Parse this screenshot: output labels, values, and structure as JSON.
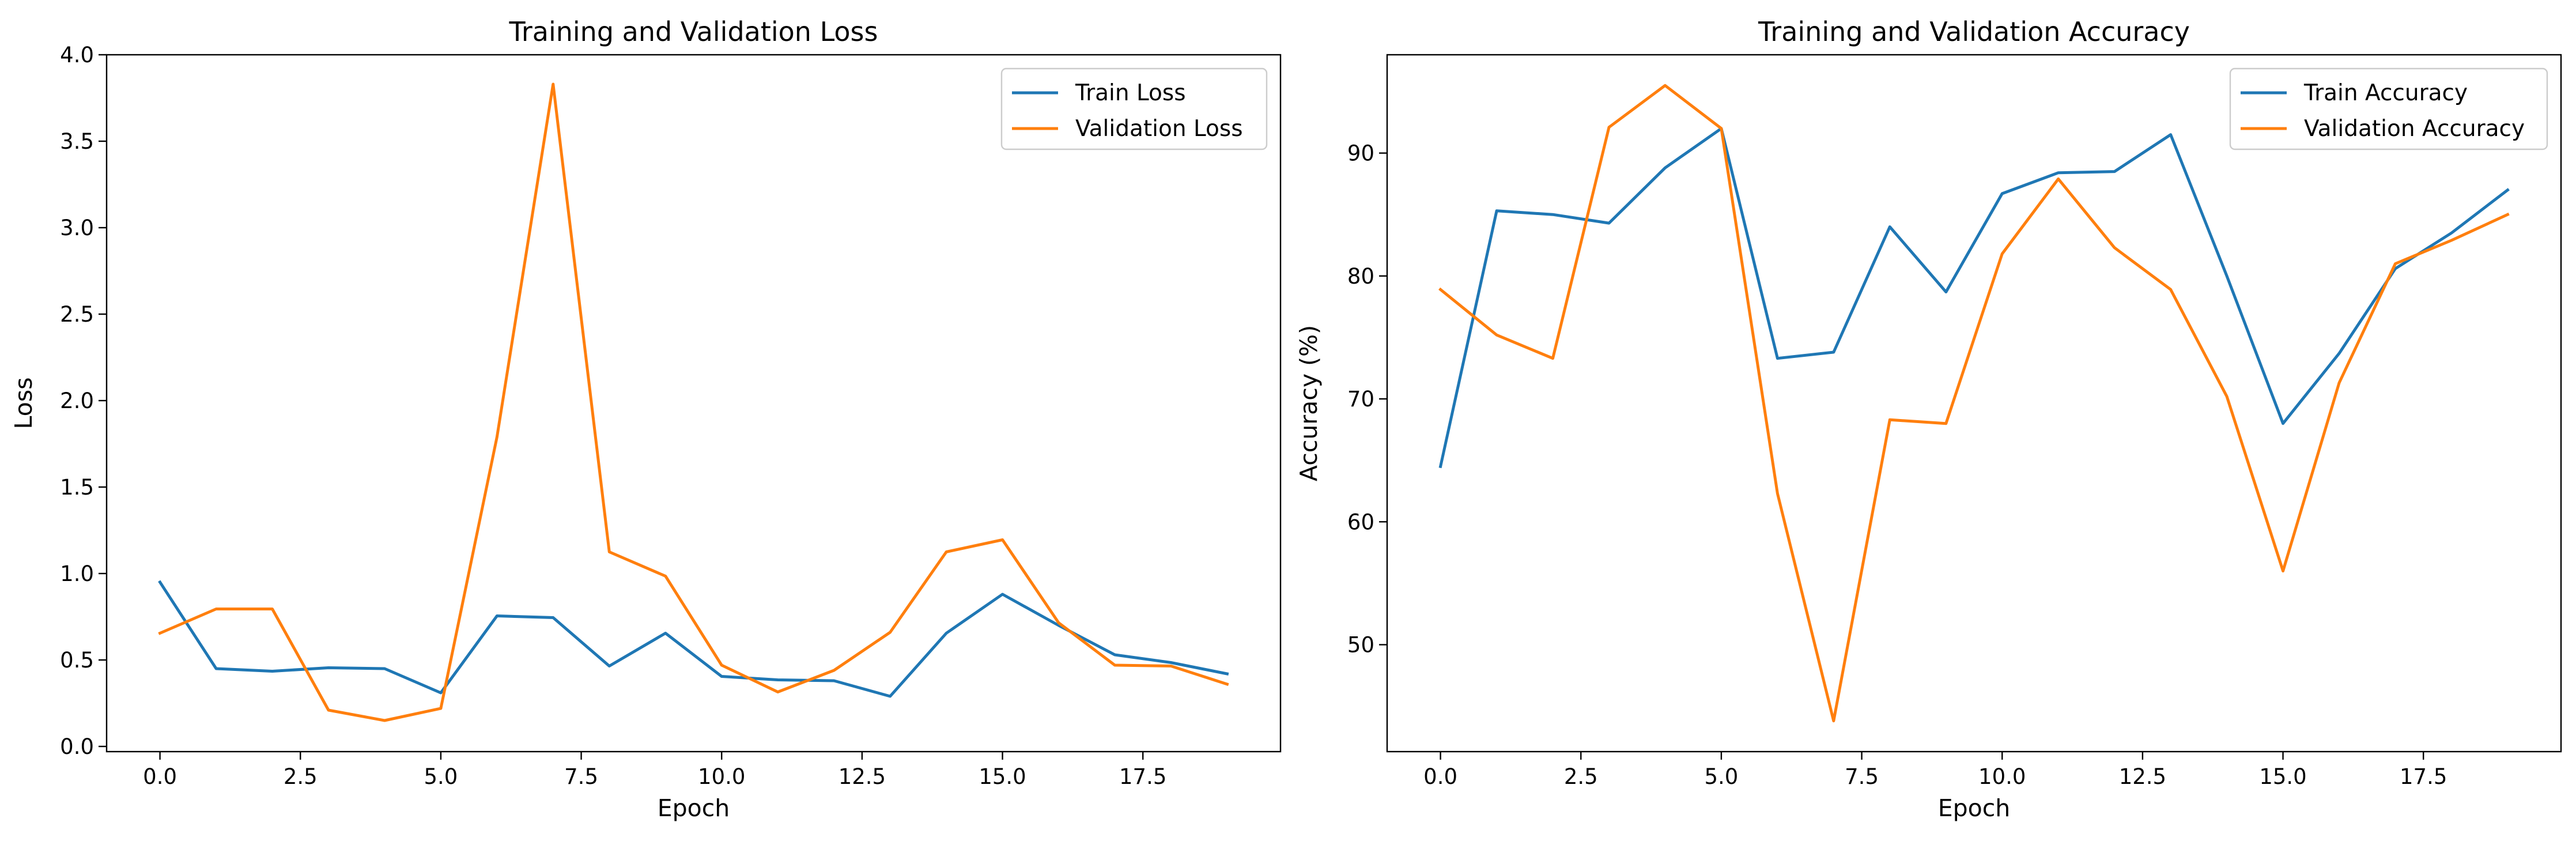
{
  "colors": {
    "train": "#1f77b4",
    "validation": "#ff7f0e"
  },
  "chart_data": [
    {
      "type": "line",
      "title": "Training and Validation Loss",
      "xlabel": "Epoch",
      "ylabel": "Loss",
      "xlim": [
        -0.95,
        19.95
      ],
      "ylim": [
        -0.03,
        4.0
      ],
      "xticks": [
        0.0,
        2.5,
        5.0,
        7.5,
        10.0,
        12.5,
        15.0,
        17.5
      ],
      "xtick_labels": [
        "0.0",
        "2.5",
        "5.0",
        "7.5",
        "10.0",
        "12.5",
        "15.0",
        "17.5"
      ],
      "yticks": [
        0.0,
        0.5,
        1.0,
        1.5,
        2.0,
        2.5,
        3.0,
        3.5,
        4.0
      ],
      "ytick_labels": [
        "0.0",
        "0.5",
        "1.0",
        "1.5",
        "2.0",
        "2.5",
        "3.0",
        "3.5",
        "4.0"
      ],
      "grid": false,
      "legend": "top-right",
      "x": [
        0,
        1,
        2,
        3,
        4,
        5,
        6,
        7,
        8,
        9,
        10,
        11,
        12,
        13,
        14,
        15,
        16,
        17,
        18,
        19
      ],
      "series": [
        {
          "name": "Train Loss",
          "color": "#1f77b4",
          "values": [
            0.95,
            0.45,
            0.435,
            0.455,
            0.45,
            0.31,
            0.755,
            0.745,
            0.465,
            0.655,
            0.405,
            0.385,
            0.38,
            0.29,
            0.655,
            0.88,
            0.7,
            0.53,
            0.485,
            0.42
          ]
        },
        {
          "name": "Validation Loss",
          "color": "#ff7f0e",
          "values": [
            0.655,
            0.795,
            0.795,
            0.21,
            0.15,
            0.22,
            1.79,
            3.83,
            1.125,
            0.985,
            0.47,
            0.315,
            0.44,
            0.66,
            1.125,
            1.195,
            0.715,
            0.47,
            0.465,
            0.36
          ]
        }
      ]
    },
    {
      "type": "line",
      "title": "Training and Validation Accuracy",
      "xlabel": "Epoch",
      "ylabel": "Accuracy (%)",
      "xlim": [
        -0.95,
        19.95
      ],
      "ylim": [
        41.3,
        98.0
      ],
      "xticks": [
        0.0,
        2.5,
        5.0,
        7.5,
        10.0,
        12.5,
        15.0,
        17.5
      ],
      "xtick_labels": [
        "0.0",
        "2.5",
        "5.0",
        "7.5",
        "10.0",
        "12.5",
        "15.0",
        "17.5"
      ],
      "yticks": [
        50,
        60,
        70,
        80,
        90
      ],
      "ytick_labels": [
        "50",
        "60",
        "70",
        "80",
        "90"
      ],
      "grid": false,
      "legend": "top-right",
      "x": [
        0,
        1,
        2,
        3,
        4,
        5,
        6,
        7,
        8,
        9,
        10,
        11,
        12,
        13,
        14,
        15,
        16,
        17,
        18,
        19
      ],
      "series": [
        {
          "name": "Train Accuracy",
          "color": "#1f77b4",
          "values": [
            64.5,
            85.3,
            85.0,
            84.3,
            88.8,
            92.0,
            73.3,
            73.8,
            84.0,
            78.7,
            86.7,
            88.4,
            88.5,
            91.5,
            80.0,
            68.0,
            73.7,
            80.6,
            83.5,
            87.0
          ]
        },
        {
          "name": "Validation Accuracy",
          "color": "#ff7f0e",
          "values": [
            78.9,
            75.2,
            73.3,
            92.1,
            95.5,
            92.0,
            62.3,
            43.8,
            68.3,
            68.0,
            81.8,
            87.9,
            82.3,
            78.9,
            70.2,
            56.0,
            71.3,
            81.0,
            82.9,
            85.0
          ]
        }
      ]
    }
  ]
}
